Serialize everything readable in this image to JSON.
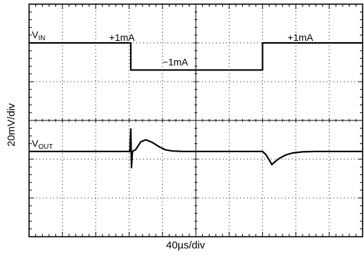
{
  "chart_data": {
    "type": "line",
    "ylabel": "20mV/div",
    "xlabel": "40µs/div",
    "divisions": {
      "x": 10,
      "y": 6
    },
    "grid": true,
    "series": [
      {
        "name": "VIN",
        "label_main": "V",
        "label_sub": "IN",
        "points": [
          [
            0,
            5.0
          ],
          [
            3.05,
            5.0
          ],
          [
            3.05,
            4.3
          ],
          [
            7.0,
            4.3
          ],
          [
            7.0,
            5.0
          ],
          [
            10,
            5.0
          ]
        ]
      },
      {
        "name": "VOUT",
        "label_main": "V",
        "label_sub": "OUT",
        "points": [
          [
            0,
            2.2
          ],
          [
            3.0,
            2.2
          ],
          [
            3.02,
            2.2
          ],
          [
            3.05,
            2.78
          ],
          [
            3.07,
            1.78
          ],
          [
            3.1,
            2.2
          ],
          [
            3.2,
            2.25
          ],
          [
            3.35,
            2.45
          ],
          [
            3.5,
            2.5
          ],
          [
            3.7,
            2.43
          ],
          [
            3.9,
            2.32
          ],
          [
            4.1,
            2.24
          ],
          [
            4.3,
            2.21
          ],
          [
            4.6,
            2.2
          ],
          [
            5.0,
            2.2
          ],
          [
            7.0,
            2.2
          ],
          [
            7.1,
            2.12
          ],
          [
            7.2,
            1.98
          ],
          [
            7.28,
            1.86
          ],
          [
            7.35,
            1.92
          ],
          [
            7.5,
            2.02
          ],
          [
            7.7,
            2.11
          ],
          [
            7.9,
            2.16
          ],
          [
            8.2,
            2.19
          ],
          [
            8.6,
            2.2
          ],
          [
            10,
            2.2
          ]
        ]
      }
    ],
    "annotations": [
      {
        "text": "+1mA",
        "x": 2.4,
        "y": 5.05
      },
      {
        "text": "−1mA",
        "x": 4.0,
        "y": 4.42
      },
      {
        "text": "+1mA",
        "x": 7.75,
        "y": 5.05
      }
    ]
  }
}
